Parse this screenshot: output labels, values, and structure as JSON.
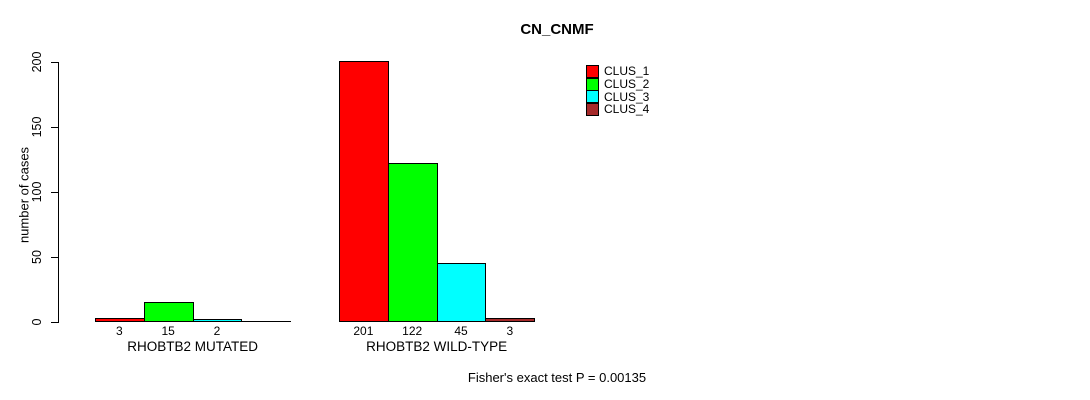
{
  "chart_data": {
    "type": "bar",
    "title": "CN_CNMF",
    "ylabel": "number of cases",
    "ylim": [
      0,
      200
    ],
    "yticks": [
      0,
      50,
      100,
      150,
      200
    ],
    "grid": false,
    "legend_position": "top-right",
    "categories": [
      "RHOBTB2 MUTATED",
      "RHOBTB2 WILD-TYPE"
    ],
    "series": [
      {
        "name": "CLUS_1",
        "color": "#ff0000",
        "values": [
          3,
          201
        ]
      },
      {
        "name": "CLUS_2",
        "color": "#00ff00",
        "values": [
          15,
          122
        ]
      },
      {
        "name": "CLUS_3",
        "color": "#00ffff",
        "values": [
          2,
          45
        ]
      },
      {
        "name": "CLUS_4",
        "color": "#a52a2a",
        "values": [
          0,
          3
        ]
      }
    ],
    "annotation": "Fisher's exact test P = 0.00135"
  }
}
